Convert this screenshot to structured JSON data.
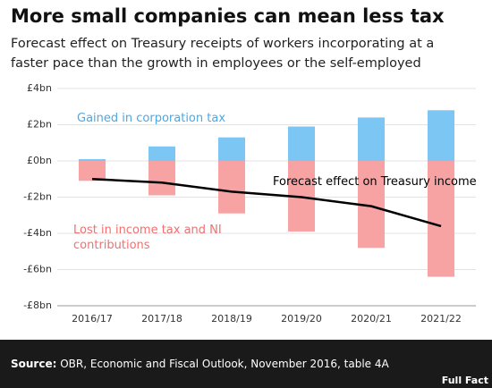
{
  "chart_data": {
    "type": "bar",
    "title": "More small companies can mean less tax",
    "subtitle": "Forecast effect on Treasury receipts of workers incorporating at a faster pace than the growth in employees or the self-employed",
    "categories": [
      "2016/17",
      "2017/18",
      "2018/19",
      "2019/20",
      "2020/21",
      "2021/22"
    ],
    "series": [
      {
        "name": "Gained in corporation tax",
        "color": "#7cc6f4",
        "type": "bar",
        "values": [
          0.1,
          0.8,
          1.3,
          1.9,
          2.4,
          2.8
        ]
      },
      {
        "name": "Lost in income tax and NI contributions",
        "color": "#f7a3a3",
        "type": "bar",
        "values": [
          -1.1,
          -1.9,
          -2.9,
          -3.9,
          -4.8,
          -6.4
        ]
      },
      {
        "name": "Forecast effect on Treasury income",
        "color": "#000000",
        "type": "line",
        "values": [
          -1.0,
          -1.2,
          -1.7,
          -2.0,
          -2.5,
          -3.6
        ]
      }
    ],
    "ylim": [
      -8,
      4
    ],
    "yticks": [
      {
        "value": -8,
        "label": "-£8bn"
      },
      {
        "value": -6,
        "label": "-£6bn"
      },
      {
        "value": -4,
        "label": "-£4bn"
      },
      {
        "value": -2,
        "label": "-£2bn"
      },
      {
        "value": 0,
        "label": "£0bn"
      },
      {
        "value": 2,
        "label": "£2bn"
      },
      {
        "value": 4,
        "label": "£4bn"
      }
    ],
    "grid": true,
    "source_label": "Source:",
    "source": "OBR, Economic and Fiscal Outlook, November 2016, table 4A",
    "logo": "Full Fact"
  }
}
